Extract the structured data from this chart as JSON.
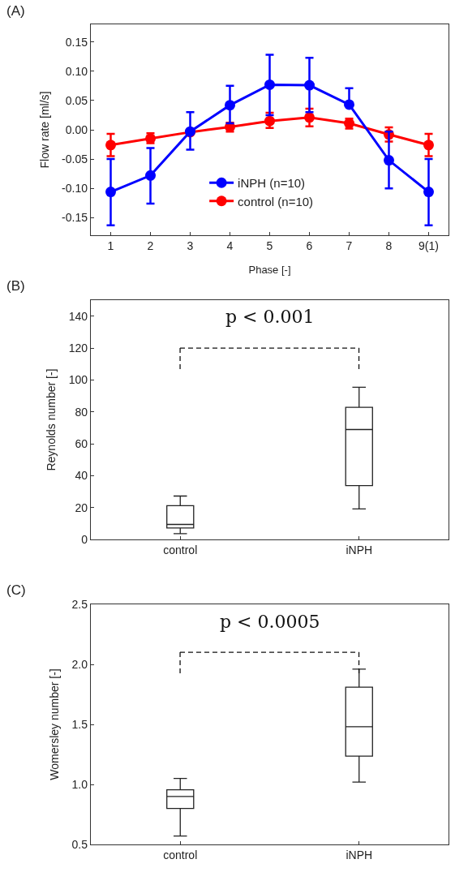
{
  "chart_data": [
    {
      "type": "line",
      "annotations": [
        "(A)"
      ],
      "xlabel": "Phase [-]",
      "ylabel": "Flow rate [ml/s]",
      "categories": [
        "1",
        "2",
        "3",
        "4",
        "5",
        "6",
        "7",
        "8",
        "9(1)"
      ],
      "series": [
        {
          "name": "iNPH (n=10)",
          "color": "#0000ff",
          "values": [
            -0.106,
            -0.078,
            -0.003,
            0.042,
            0.077,
            0.076,
            0.043,
            -0.052,
            -0.106
          ],
          "errors": [
            [
              -0.163,
              -0.05
            ],
            [
              -0.126,
              -0.031
            ],
            [
              -0.034,
              0.03
            ],
            [
              0.011,
              0.075
            ],
            [
              0.025,
              0.128
            ],
            [
              0.03,
              0.123
            ],
            [
              0.043,
              0.071
            ],
            [
              -0.1,
              -0.003
            ],
            [
              -0.163,
              -0.05
            ]
          ]
        },
        {
          "name": "control (n=10)",
          "color": "#ff0000",
          "values": [
            -0.026,
            -0.015,
            -0.004,
            0.005,
            0.015,
            0.021,
            0.011,
            -0.008,
            -0.026
          ],
          "errors": [
            [
              -0.045,
              -0.007
            ],
            [
              -0.023,
              -0.006
            ],
            null,
            [
              -0.003,
              0.012
            ],
            [
              0.003,
              0.029
            ],
            [
              0.006,
              0.036
            ],
            [
              0.002,
              0.019
            ],
            [
              -0.02,
              0.004
            ],
            [
              -0.045,
              -0.007
            ]
          ]
        }
      ],
      "ylim": [
        -0.18,
        0.18
      ],
      "yticks": [
        {
          "value": -0.15,
          "label": "-0.15"
        },
        {
          "value": -0.1,
          "label": "-0.10"
        },
        {
          "value": -0.05,
          "label": "-0.05"
        },
        {
          "value": 0,
          "label": "0.00"
        },
        {
          "value": 0.05,
          "label": "0.05"
        },
        {
          "value": 0.1,
          "label": "0.10"
        },
        {
          "value": 0.15,
          "label": "0.15"
        }
      ],
      "legend": "bottom",
      "marker": "circle",
      "line_style": "solid"
    },
    {
      "type": "box",
      "annotations": [
        "(B)",
        "p < 0.001"
      ],
      "ylabel": "Reynolds number [-]",
      "categories": [
        "control",
        "iNPH"
      ],
      "boxes": [
        {
          "low": 3.6,
          "q1": 7.2,
          "median": 9.4,
          "q3": 21.2,
          "high": 27.2
        },
        {
          "low": 19.1,
          "q1": 33.7,
          "median": 68.9,
          "q3": 82.8,
          "high": 95.4
        }
      ],
      "ylim": [
        0,
        150
      ],
      "yticks": [
        0,
        20,
        40,
        60,
        80,
        100,
        120,
        140
      ]
    },
    {
      "type": "box",
      "annotations": [
        "(C)",
        "p < 0.0005"
      ],
      "ylabel": "Womersley number [-]",
      "categories": [
        "control",
        "iNPH"
      ],
      "boxes": [
        {
          "low": 0.57,
          "q1": 0.8,
          "median": 0.9,
          "q3": 0.955,
          "high": 1.05
        },
        {
          "low": 1.02,
          "q1": 1.235,
          "median": 1.48,
          "q3": 1.81,
          "high": 1.96
        }
      ],
      "ylim": [
        0.5,
        2.5
      ],
      "yticks": [
        {
          "value": 0.5,
          "label": "0.5"
        },
        {
          "value": 1,
          "label": "1.0"
        },
        {
          "value": 1.5,
          "label": "1.5"
        },
        {
          "value": 2,
          "label": "2.0"
        },
        {
          "value": 2.5,
          "label": "2.5"
        }
      ]
    }
  ]
}
